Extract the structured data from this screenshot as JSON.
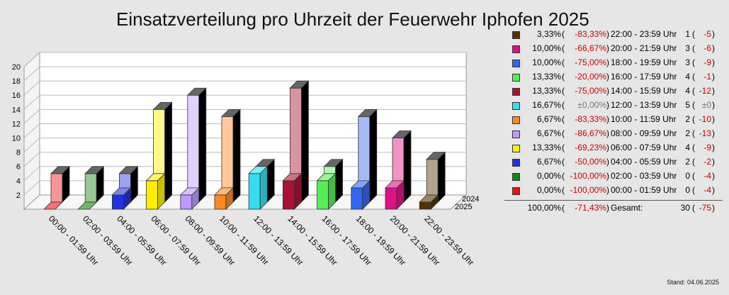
{
  "chart_data": {
    "type": "bar",
    "title": "Einsatzverteilung pro Uhrzeit der Feuerwehr Iphofen 2025",
    "categories": [
      "00:00 - 01:59 Uhr",
      "02:00 - 03:59 Uhr",
      "04:00 - 05:59 Uhr",
      "06:00 - 07:59 Uhr",
      "08:00 - 09:59 Uhr",
      "10:00 - 11:59 Uhr",
      "12:00 - 13:59 Uhr",
      "14:00 - 15:59 Uhr",
      "16:00 - 17:59 Uhr",
      "18:00 - 19:59 Uhr",
      "20:00 - 21:59 Uhr",
      "22:00 - 23:59 Uhr"
    ],
    "series": [
      {
        "name": "2025",
        "values": [
          0,
          0,
          2,
          4,
          2,
          2,
          5,
          4,
          4,
          3,
          3,
          1
        ]
      },
      {
        "name": "2024",
        "values": [
          4,
          4,
          4,
          13,
          15,
          12,
          5,
          16,
          5,
          12,
          9,
          6
        ]
      }
    ],
    "colors": [
      "#ee1111",
      "#118811",
      "#2233dd",
      "#ffee00",
      "#bb99ff",
      "#ff8822",
      "#33ddee",
      "#aa1133",
      "#55ee55",
      "#3366ee",
      "#dd1188",
      "#553300"
    ],
    "y_ticks": [
      "2",
      "4",
      "6",
      "8",
      "10",
      "12",
      "14",
      "16",
      "18",
      "20"
    ],
    "ylim": [
      0,
      20
    ],
    "grid": true,
    "legend": [
      {
        "color": "#553300",
        "pct": "3,33%",
        "chg": "-83,33%",
        "time": "22:00 - 23:59 Uhr",
        "count": "1",
        "diff": "-5"
      },
      {
        "color": "#dd1188",
        "pct": "10,00%",
        "chg": "-66,67%",
        "time": "20:00 - 21:59 Uhr",
        "count": "3",
        "diff": "-6"
      },
      {
        "color": "#3366ee",
        "pct": "10,00%",
        "chg": "-75,00%",
        "time": "18:00 - 19:59 Uhr",
        "count": "3",
        "diff": "-9"
      },
      {
        "color": "#55ee55",
        "pct": "13,33%",
        "chg": "-20,00%",
        "time": "16:00 - 17:59 Uhr",
        "count": "4",
        "diff": "-1"
      },
      {
        "color": "#aa1133",
        "pct": "13,33%",
        "chg": "-75,00%",
        "time": "14:00 - 15:59 Uhr",
        "count": "4",
        "diff": "-12"
      },
      {
        "color": "#33ddee",
        "pct": "16,67%",
        "chg": "±0,00%",
        "time": "12:00 - 13:59 Uhr",
        "count": "5",
        "diff": "±0"
      },
      {
        "color": "#ff8822",
        "pct": "6,67%",
        "chg": "-83,33%",
        "time": "10:00 - 11:59 Uhr",
        "count": "2",
        "diff": "-10"
      },
      {
        "color": "#bb99ff",
        "pct": "6,67%",
        "chg": "-86,67%",
        "time": "08:00 - 09:59 Uhr",
        "count": "2",
        "diff": "-13"
      },
      {
        "color": "#ffee00",
        "pct": "13,33%",
        "chg": "-69,23%",
        "time": "06:00 - 07:59 Uhr",
        "count": "4",
        "diff": "-9"
      },
      {
        "color": "#2233dd",
        "pct": "6,67%",
        "chg": "-50,00%",
        "time": "04:00 - 05:59 Uhr",
        "count": "2",
        "diff": "-2"
      },
      {
        "color": "#118811",
        "pct": "0,00%",
        "chg": "-100,00%",
        "time": "02:00 - 03:59 Uhr",
        "count": "0",
        "diff": "-4"
      },
      {
        "color": "#ee1111",
        "pct": "0,00%",
        "chg": "-100,00%",
        "time": "00:00 - 01:59 Uhr",
        "count": "0",
        "diff": "-4"
      }
    ],
    "total": {
      "pct": "100,00%",
      "chg": "-71,43%",
      "label": "Gesamt:",
      "count": "30",
      "diff": "-75"
    }
  },
  "footer": {
    "stand": "Stand: 04.06.2025"
  }
}
